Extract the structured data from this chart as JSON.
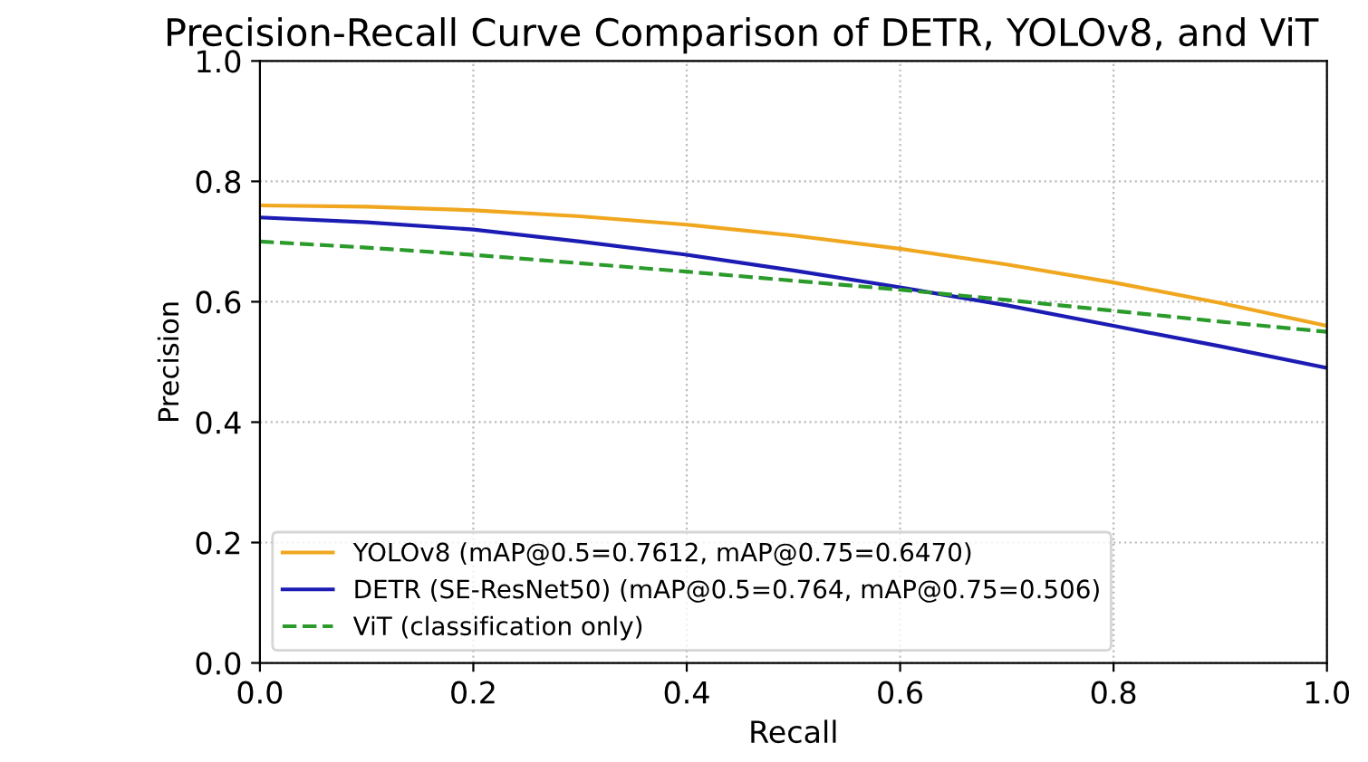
{
  "chart_data": {
    "type": "line",
    "title": "Precision-Recall Curve Comparison of DETR, YOLOv8, and ViT",
    "xlabel": "Recall",
    "ylabel": "Precision",
    "x": [
      0,
      0.1,
      0.2,
      0.3,
      0.4,
      0.5,
      0.6,
      0.7,
      0.8,
      0.9,
      1.0
    ],
    "series": [
      {
        "name": "YOLOv8 (mAP@0.5=0.7612, mAP@0.75=0.6470)",
        "color": "#f0a71f",
        "values": [
          0.76,
          0.758,
          0.752,
          0.742,
          0.728,
          0.71,
          0.688,
          0.662,
          0.632,
          0.598,
          0.56
        ]
      },
      {
        "name": "DETR (SE-ResNet50) (mAP@0.5=0.764, mAP@0.75=0.506)",
        "color": "#1c1cb4",
        "values": [
          0.74,
          0.732,
          0.72,
          0.7,
          0.678,
          0.652,
          0.624,
          0.594,
          0.56,
          0.526,
          0.49
        ]
      },
      {
        "name": "ViT (classification only)",
        "color": "#2a9a2a",
        "line_style": "dashed",
        "values": [
          0.7,
          0.69,
          0.678,
          0.664,
          0.65,
          0.635,
          0.62,
          0.603,
          0.585,
          0.567,
          0.55
        ]
      }
    ],
    "xlim": [
      0,
      1
    ],
    "ylim": [
      0,
      1
    ],
    "xticks": [
      {
        "value": 0,
        "label": "0.0"
      },
      0.2,
      0.4,
      0.6,
      0.8,
      {
        "value": 1,
        "label": "1.0"
      }
    ],
    "yticks": [
      {
        "value": 0,
        "label": "0.0"
      },
      0.2,
      0.4,
      0.6,
      0.8,
      {
        "value": 1,
        "label": "1.0"
      }
    ],
    "grid": true,
    "legend": "bottom left"
  }
}
